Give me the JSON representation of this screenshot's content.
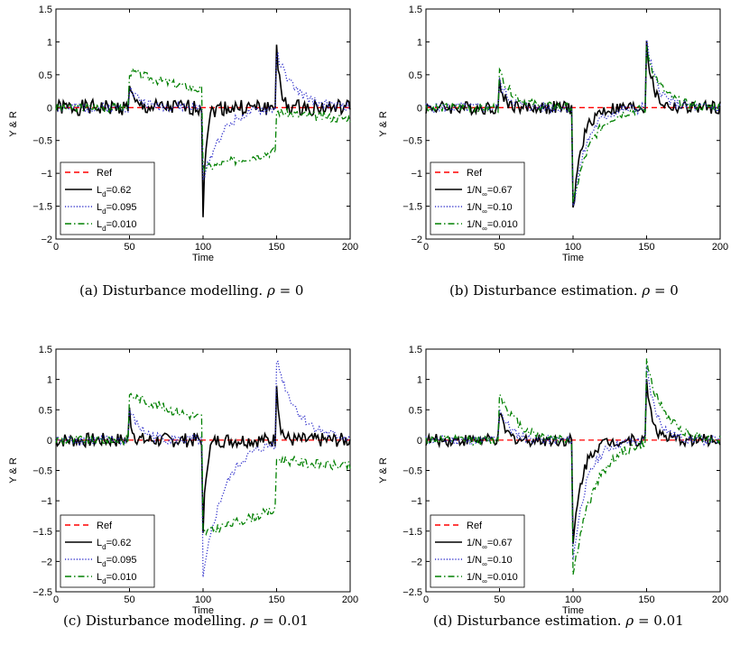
{
  "chart_data": [
    {
      "type": "line",
      "caption_prefix": "(a) Disturbance modelling.",
      "caption_symbol": "ρ",
      "caption_value": "= 0",
      "xlabel": "Time",
      "ylabel": "Y & R",
      "xlim": [
        0,
        200
      ],
      "ylim": [
        -2,
        1.5
      ],
      "xticks": [
        "0",
        "50",
        "100",
        "150",
        "200"
      ],
      "yticks": [
        "−2",
        "−1.5",
        "−1",
        "−0.5",
        "0",
        "0.5",
        "1",
        "1.5"
      ],
      "legend_position": "lower-left",
      "series": [
        {
          "name": "Ref",
          "style": "dashed",
          "color": "#ff0000",
          "step": [
            [
              0,
              0
            ],
            [
              200,
              0
            ]
          ]
        },
        {
          "name": "Ld=0.62",
          "label_main": "L",
          "label_sub": "d",
          "label_tail": "=0.62",
          "style": "solid",
          "color": "#000000",
          "events": [
            {
              "t": 50,
              "amp": 0.4,
              "tau": 2
            },
            {
              "t": 100,
              "amp": -1.55,
              "tau": 2
            },
            {
              "t": 150,
              "amp": 1.05,
              "tau": 2
            }
          ],
          "noise": 0.12,
          "noise_seed": 1
        },
        {
          "name": "Ld=0.095",
          "label_main": "L",
          "label_sub": "d",
          "label_tail": "=0.095",
          "style": "dotted",
          "color": "#3333cc",
          "events": [
            {
              "t": 50,
              "amp": 0.3,
              "tau": 8
            },
            {
              "t": 100,
              "amp": -1.15,
              "tau": 12
            },
            {
              "t": 150,
              "amp": 0.85,
              "tau": 12
            }
          ],
          "noise": 0.07,
          "noise_seed": 2
        },
        {
          "name": "Ld=0.010",
          "label_main": "L",
          "label_sub": "d",
          "label_tail": "=0.010",
          "style": "dashdot",
          "color": "#008000",
          "events": [
            {
              "t": 50,
              "amp": 0.55,
              "tau": 70
            },
            {
              "t": 100,
              "amp": -1.2,
              "tau": 120
            },
            {
              "t": 150,
              "amp": 0.6,
              "tau": 70
            }
          ],
          "noise": 0.07,
          "noise_seed": 3
        }
      ]
    },
    {
      "type": "line",
      "caption_prefix": "(b) Disturbance estimation.",
      "caption_symbol": "ρ",
      "caption_value": "= 0",
      "xlabel": "Time",
      "ylabel": "Y & R",
      "xlim": [
        0,
        200
      ],
      "ylim": [
        -2,
        1.5
      ],
      "xticks": [
        "0",
        "50",
        "100",
        "150",
        "200"
      ],
      "yticks": [
        "−2",
        "−1.5",
        "−1",
        "−0.5",
        "0",
        "0.5",
        "1",
        "1.5"
      ],
      "legend_position": "lower-left",
      "series": [
        {
          "name": "Ref",
          "style": "dashed",
          "color": "#ff0000",
          "step": [
            [
              0,
              0
            ],
            [
              200,
              0
            ]
          ]
        },
        {
          "name": "1/N∞=0.67",
          "label_main": "1/N",
          "label_sub": "∞",
          "label_tail": "=0.67",
          "style": "solid",
          "color": "#000000",
          "events": [
            {
              "t": 50,
              "amp": 0.35,
              "tau": 4
            },
            {
              "t": 100,
              "amp": -1.6,
              "tau": 6
            },
            {
              "t": 150,
              "amp": 1.0,
              "tau": 4
            }
          ],
          "noise": 0.1,
          "noise_seed": 4
        },
        {
          "name": "1/N∞=0.10",
          "label_main": "1/N",
          "label_sub": "∞",
          "label_tail": "=0.10",
          "style": "dotted",
          "color": "#3333cc",
          "events": [
            {
              "t": 50,
              "amp": 0.4,
              "tau": 7
            },
            {
              "t": 100,
              "amp": -1.55,
              "tau": 9
            },
            {
              "t": 150,
              "amp": 1.0,
              "tau": 7
            }
          ],
          "noise": 0.08,
          "noise_seed": 5
        },
        {
          "name": "1/N∞=0.010",
          "label_main": "1/N",
          "label_sub": "∞",
          "label_tail": "=0.010",
          "style": "dashdot",
          "color": "#008000",
          "events": [
            {
              "t": 50,
              "amp": 0.55,
              "tau": 10
            },
            {
              "t": 100,
              "amp": -1.5,
              "tau": 12
            },
            {
              "t": 150,
              "amp": 0.9,
              "tau": 10
            }
          ],
          "noise": 0.07,
          "noise_seed": 6
        }
      ]
    },
    {
      "type": "line",
      "caption_prefix": "(c) Disturbance modelling.",
      "caption_symbol": "ρ",
      "caption_value": "= 0.01",
      "xlabel": "Time",
      "ylabel": "Y & R",
      "xlim": [
        0,
        200
      ],
      "ylim": [
        -2.5,
        1.5
      ],
      "xticks": [
        "0",
        "50",
        "100",
        "150",
        "200"
      ],
      "yticks": [
        "−2.5",
        "−2",
        "−1.5",
        "−1",
        "−0.5",
        "0",
        "0.5",
        "1",
        "1.5"
      ],
      "legend_position": "lower-left",
      "series": [
        {
          "name": "Ref",
          "style": "dashed",
          "color": "#ff0000",
          "step": [
            [
              0,
              0
            ],
            [
              200,
              0
            ]
          ]
        },
        {
          "name": "Ld=0.62",
          "label_main": "L",
          "label_sub": "d",
          "label_tail": "=0.62",
          "style": "solid",
          "color": "#000000",
          "events": [
            {
              "t": 50,
              "amp": 0.5,
              "tau": 2
            },
            {
              "t": 100,
              "amp": -1.6,
              "tau": 2
            },
            {
              "t": 150,
              "amp": 1.0,
              "tau": 2
            }
          ],
          "noise": 0.12,
          "noise_seed": 7
        },
        {
          "name": "Ld=0.095",
          "label_main": "L",
          "label_sub": "d",
          "label_tail": "=0.095",
          "style": "dotted",
          "color": "#3333cc",
          "events": [
            {
              "t": 50,
              "amp": 0.5,
              "tau": 8
            },
            {
              "t": 100,
              "amp": -2.3,
              "tau": 14
            },
            {
              "t": 150,
              "amp": 1.4,
              "tau": 14
            }
          ],
          "noise": 0.08,
          "noise_seed": 8
        },
        {
          "name": "Ld=0.010",
          "label_main": "L",
          "label_sub": "d",
          "label_tail": "=0.010",
          "style": "dashdot",
          "color": "#008000",
          "events": [
            {
              "t": 50,
              "amp": 0.75,
              "tau": 70
            },
            {
              "t": 100,
              "amp": -1.9,
              "tau": 140
            },
            {
              "t": 150,
              "amp": 0.85,
              "tau": 70
            }
          ],
          "noise": 0.08,
          "noise_seed": 9
        }
      ]
    },
    {
      "type": "line",
      "caption_prefix": "(d) Disturbance estimation.",
      "caption_symbol": "ρ",
      "caption_value": "= 0.01",
      "xlabel": "Time",
      "ylabel": "Y & R",
      "xlim": [
        0,
        200
      ],
      "ylim": [
        -2.5,
        1.5
      ],
      "xticks": [
        "0",
        "50",
        "100",
        "150",
        "200"
      ],
      "yticks": [
        "−2.5",
        "−2",
        "−1.5",
        "−1",
        "−0.5",
        "0",
        "0.5",
        "1",
        "1.5"
      ],
      "legend_position": "lower-left",
      "series": [
        {
          "name": "Ref",
          "style": "dashed",
          "color": "#ff0000",
          "step": [
            [
              0,
              0
            ],
            [
              200,
              0
            ]
          ]
        },
        {
          "name": "1/N∞=0.67",
          "label_main": "1/N",
          "label_sub": "∞",
          "label_tail": "=0.67",
          "style": "solid",
          "color": "#000000",
          "events": [
            {
              "t": 50,
              "amp": 0.45,
              "tau": 4
            },
            {
              "t": 100,
              "amp": -1.75,
              "tau": 6
            },
            {
              "t": 150,
              "amp": 1.0,
              "tau": 4
            }
          ],
          "noise": 0.1,
          "noise_seed": 10
        },
        {
          "name": "1/N∞=0.10",
          "label_main": "1/N",
          "label_sub": "∞",
          "label_tail": "=0.10",
          "style": "dotted",
          "color": "#3333cc",
          "events": [
            {
              "t": 50,
              "amp": 0.55,
              "tau": 7
            },
            {
              "t": 100,
              "amp": -2.0,
              "tau": 9
            },
            {
              "t": 150,
              "amp": 1.2,
              "tau": 7
            }
          ],
          "noise": 0.08,
          "noise_seed": 11
        },
        {
          "name": "1/N∞=0.010",
          "label_main": "1/N",
          "label_sub": "∞",
          "label_tail": "=0.010",
          "style": "dashdot",
          "color": "#008000",
          "events": [
            {
              "t": 50,
              "amp": 0.8,
              "tau": 12
            },
            {
              "t": 100,
              "amp": -2.25,
              "tau": 14
            },
            {
              "t": 150,
              "amp": 1.35,
              "tau": 12
            }
          ],
          "noise": 0.08,
          "noise_seed": 12
        }
      ]
    }
  ]
}
